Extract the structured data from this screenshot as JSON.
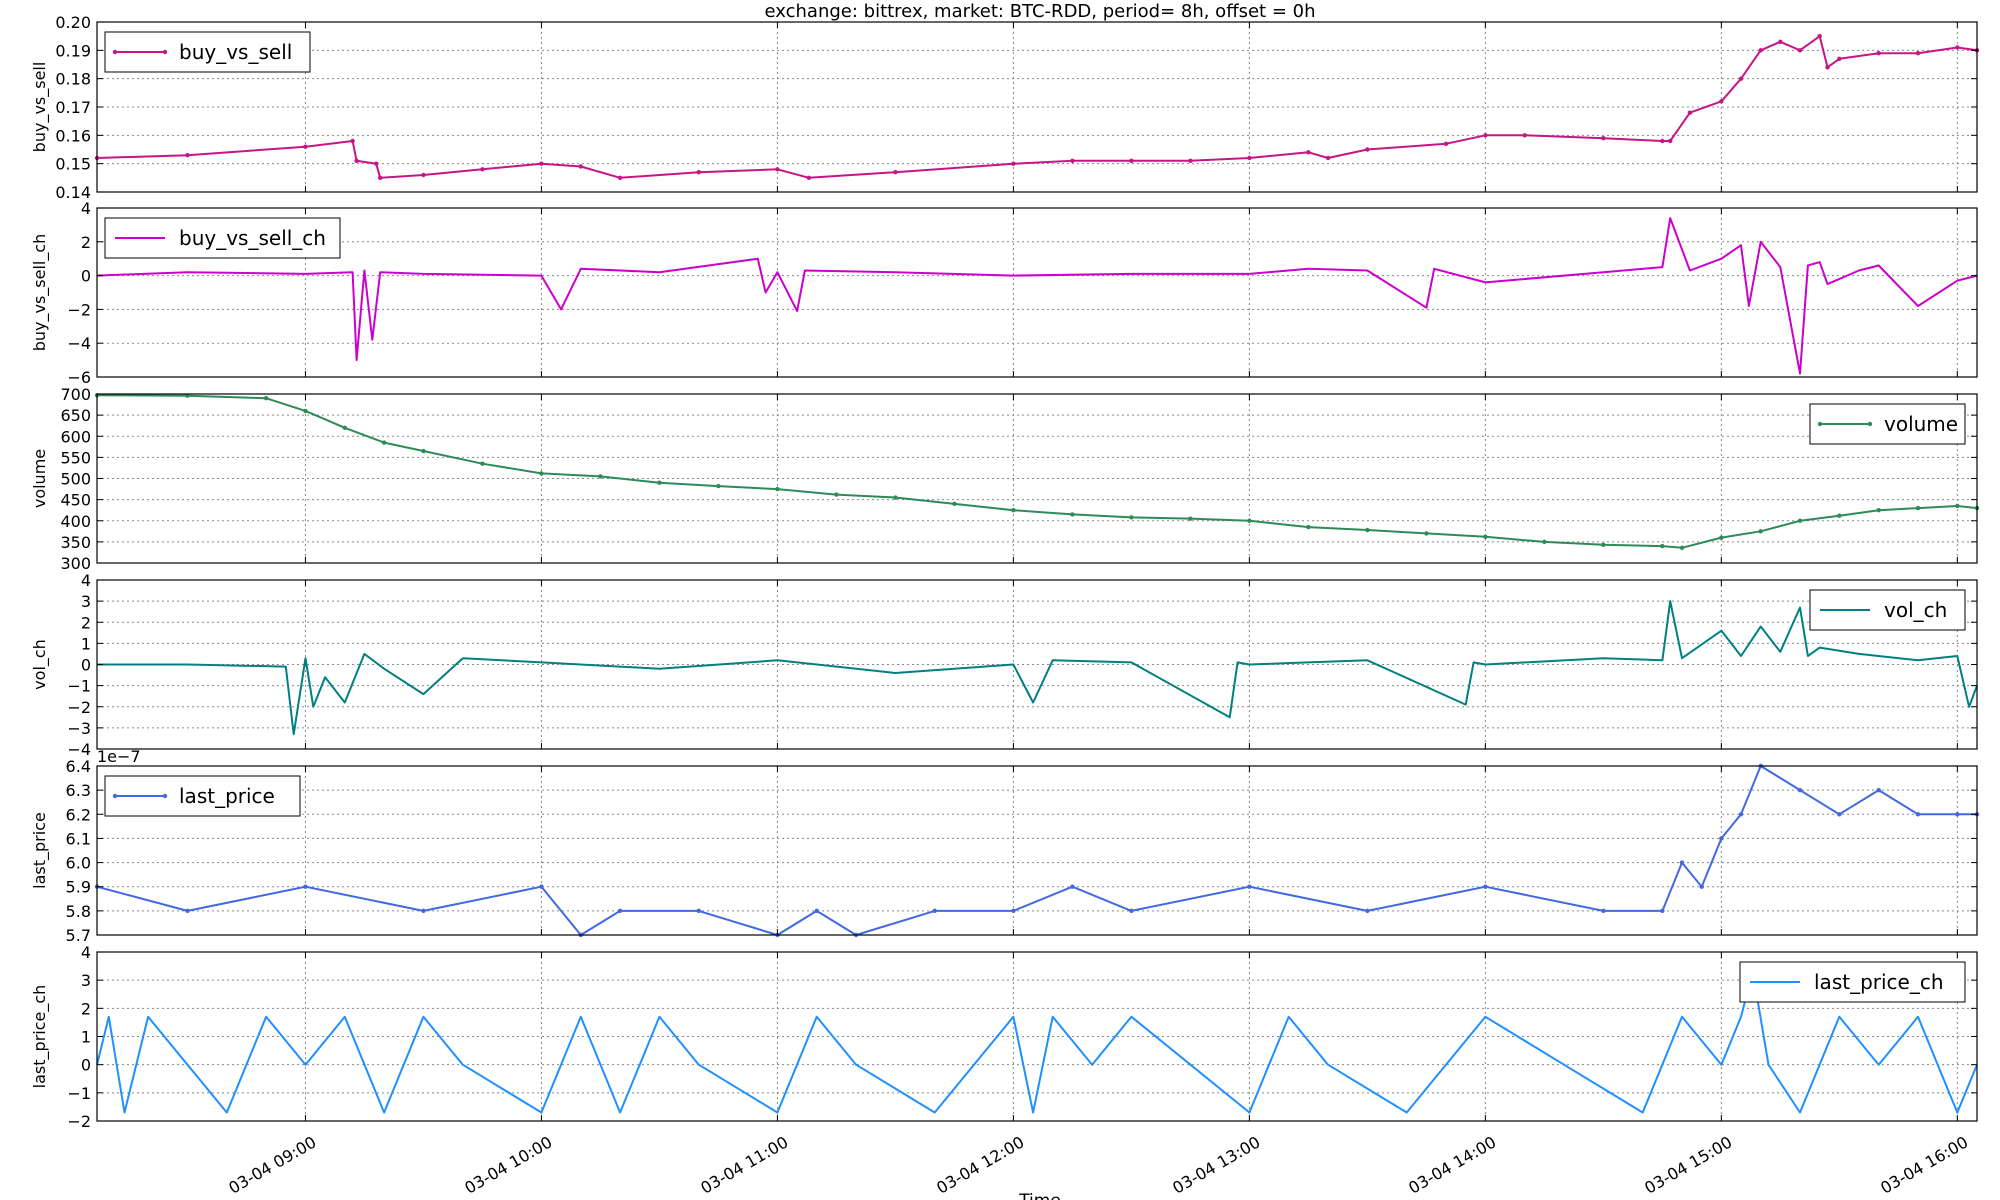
{
  "title": "exchange:  bittrex,   market: BTC-RDD,    period= 8h,  offset = 0h",
  "xlabel": "Time",
  "x_ticks": [
    "03-04 09:00",
    "03-04 10:00",
    "03-04 11:00",
    "03-04 12:00",
    "03-04 13:00",
    "03-04 14:00",
    "03-04 15:00",
    "03-04 16:00"
  ],
  "x_range": [
    "03-04 08:07",
    "03-04 16:05"
  ],
  "chart_data": [
    {
      "type": "line",
      "ylabel": "buy_vs_sell",
      "ylim": [
        0.14,
        0.2
      ],
      "y_ticks": [
        "0.14",
        "0.15",
        "0.16",
        "0.17",
        "0.18",
        "0.19",
        "0.20"
      ],
      "grid": true,
      "legend": "top-left",
      "color": "#c71585",
      "markers": true,
      "series": [
        {
          "name": "buy_vs_sell",
          "x": [
            "08:07",
            "08:30",
            "09:00",
            "09:12",
            "09:13",
            "09:18",
            "09:19",
            "09:30",
            "09:45",
            "10:00",
            "10:10",
            "10:20",
            "10:40",
            "11:00",
            "11:08",
            "11:30",
            "12:00",
            "12:15",
            "12:30",
            "12:45",
            "13:00",
            "13:15",
            "13:20",
            "13:30",
            "13:50",
            "14:00",
            "14:10",
            "14:30",
            "14:45",
            "14:47",
            "14:52",
            "15:00",
            "15:05",
            "15:10",
            "15:15",
            "15:20",
            "15:25",
            "15:27",
            "15:30",
            "15:40",
            "15:50",
            "16:00",
            "16:05"
          ],
          "y": [
            0.152,
            0.153,
            0.156,
            0.158,
            0.151,
            0.15,
            0.145,
            0.146,
            0.148,
            0.15,
            0.149,
            0.145,
            0.147,
            0.148,
            0.145,
            0.147,
            0.15,
            0.151,
            0.151,
            0.151,
            0.152,
            0.154,
            0.152,
            0.155,
            0.157,
            0.16,
            0.16,
            0.159,
            0.158,
            0.158,
            0.168,
            0.172,
            0.18,
            0.19,
            0.193,
            0.19,
            0.195,
            0.184,
            0.187,
            0.189,
            0.189,
            0.191,
            0.19
          ]
        }
      ]
    },
    {
      "type": "line",
      "ylabel": "buy_vs_sell_ch",
      "ylim": [
        -6,
        4
      ],
      "y_ticks": [
        "−6",
        "−4",
        "−2",
        "0",
        "2",
        "4"
      ],
      "grid": true,
      "legend": "top-left",
      "color": "#cc00cc",
      "markers": false,
      "series": [
        {
          "name": "buy_vs_sell_ch",
          "x": [
            "08:07",
            "08:30",
            "09:00",
            "09:12",
            "09:13",
            "09:15",
            "09:17",
            "09:19",
            "09:30",
            "10:00",
            "10:05",
            "10:10",
            "10:30",
            "10:55",
            "10:57",
            "11:00",
            "11:05",
            "11:07",
            "11:30",
            "12:00",
            "12:30",
            "13:00",
            "13:15",
            "13:30",
            "13:45",
            "13:47",
            "14:00",
            "14:30",
            "14:45",
            "14:47",
            "14:52",
            "15:00",
            "15:05",
            "15:07",
            "15:10",
            "15:15",
            "15:20",
            "15:22",
            "15:25",
            "15:27",
            "15:35",
            "15:40",
            "15:50",
            "16:00",
            "16:05"
          ],
          "y": [
            0,
            0.2,
            0.1,
            0.2,
            -5.0,
            0.3,
            -3.8,
            0.2,
            0.1,
            0,
            -2.0,
            0.4,
            0.2,
            1.0,
            -1.0,
            0.2,
            -2.1,
            0.3,
            0.2,
            0,
            0.1,
            0.1,
            0.4,
            0.3,
            -1.9,
            0.4,
            -0.4,
            0.2,
            0.5,
            3.4,
            0.3,
            1.0,
            1.8,
            -1.8,
            2.0,
            0.5,
            -5.8,
            0.6,
            0.8,
            -0.5,
            0.3,
            0.6,
            -1.8,
            -0.3,
            0
          ]
        }
      ]
    },
    {
      "type": "line",
      "ylabel": "volume",
      "ylim": [
        300,
        700
      ],
      "y_ticks": [
        "300",
        "350",
        "400",
        "450",
        "500",
        "550",
        "600",
        "650",
        "700"
      ],
      "grid": true,
      "legend": "top-right",
      "color": "#2e8b57",
      "markers": true,
      "series": [
        {
          "name": "volume",
          "x": [
            "08:07",
            "08:30",
            "08:50",
            "09:00",
            "09:10",
            "09:20",
            "09:30",
            "09:45",
            "10:00",
            "10:15",
            "10:30",
            "10:45",
            "11:00",
            "11:15",
            "11:30",
            "11:45",
            "12:00",
            "12:15",
            "12:30",
            "12:45",
            "13:00",
            "13:15",
            "13:30",
            "13:45",
            "14:00",
            "14:15",
            "14:30",
            "14:45",
            "14:50",
            "15:00",
            "15:10",
            "15:20",
            "15:30",
            "15:40",
            "15:50",
            "16:00",
            "16:05"
          ],
          "y": [
            697,
            696,
            690,
            660,
            620,
            585,
            565,
            535,
            512,
            505,
            490,
            482,
            475,
            462,
            455,
            440,
            425,
            415,
            408,
            405,
            400,
            385,
            378,
            370,
            362,
            350,
            343,
            340,
            336,
            360,
            375,
            400,
            412,
            425,
            430,
            435,
            430
          ]
        }
      ]
    },
    {
      "type": "line",
      "ylabel": "vol_ch",
      "ylim": [
        -4,
        4
      ],
      "y_ticks": [
        "−4",
        "−3",
        "−2",
        "−1",
        "0",
        "1",
        "2",
        "3",
        "4"
      ],
      "grid": true,
      "legend": "top-right",
      "color": "#008080",
      "markers": false,
      "series": [
        {
          "name": "vol_ch",
          "x": [
            "08:07",
            "08:30",
            "08:55",
            "08:57",
            "09:00",
            "09:02",
            "09:05",
            "09:10",
            "09:15",
            "09:20",
            "09:30",
            "09:40",
            "10:00",
            "10:30",
            "11:00",
            "11:30",
            "12:00",
            "12:05",
            "12:10",
            "12:30",
            "12:55",
            "12:57",
            "13:00",
            "13:30",
            "13:55",
            "13:57",
            "14:00",
            "14:30",
            "14:45",
            "14:47",
            "14:50",
            "15:00",
            "15:05",
            "15:10",
            "15:15",
            "15:20",
            "15:22",
            "15:25",
            "15:35",
            "15:50",
            "16:00",
            "16:03",
            "16:05"
          ],
          "y": [
            0,
            0,
            -0.1,
            -3.3,
            0.3,
            -2.0,
            -0.6,
            -1.8,
            0.5,
            -0.2,
            -1.4,
            0.3,
            0.1,
            -0.2,
            0.2,
            -0.4,
            0,
            -1.8,
            0.2,
            0.1,
            -2.5,
            0.1,
            0,
            0.2,
            -1.9,
            0.1,
            0,
            0.3,
            0.2,
            3.0,
            0.3,
            1.6,
            0.4,
            1.8,
            0.6,
            2.7,
            0.4,
            0.8,
            0.5,
            0.2,
            0.4,
            -2.0,
            -1.0
          ]
        }
      ]
    },
    {
      "type": "line",
      "ylabel": "last_price",
      "y_multiplier": "1e−7",
      "ylim": [
        5.7,
        6.4
      ],
      "y_ticks": [
        "5.7",
        "5.8",
        "5.9",
        "6.0",
        "6.1",
        "6.2",
        "6.3",
        "6.4"
      ],
      "grid": true,
      "legend": "top-left",
      "color": "#4169e1",
      "markers": true,
      "series": [
        {
          "name": "last_price",
          "x": [
            "08:07",
            "08:30",
            "09:00",
            "09:30",
            "10:00",
            "10:10",
            "10:20",
            "10:40",
            "11:00",
            "11:10",
            "11:20",
            "11:40",
            "12:00",
            "12:15",
            "12:30",
            "13:00",
            "13:30",
            "14:00",
            "14:30",
            "14:45",
            "14:50",
            "14:55",
            "15:00",
            "15:05",
            "15:10",
            "15:20",
            "15:30",
            "15:40",
            "15:50",
            "16:00",
            "16:05"
          ],
          "y": [
            5.9,
            5.8,
            5.9,
            5.8,
            5.9,
            5.7,
            5.8,
            5.8,
            5.7,
            5.8,
            5.7,
            5.8,
            5.8,
            5.9,
            5.8,
            5.9,
            5.8,
            5.9,
            5.8,
            5.8,
            6.0,
            5.9,
            6.1,
            6.2,
            6.4,
            6.3,
            6.2,
            6.3,
            6.2,
            6.2,
            6.2
          ]
        }
      ]
    },
    {
      "type": "line",
      "ylabel": "last_price_ch",
      "ylim": [
        -2,
        4
      ],
      "y_ticks": [
        "−2",
        "−1",
        "0",
        "1",
        "2",
        "3",
        "4"
      ],
      "grid": true,
      "legend": "top-right",
      "color": "#1e90ff",
      "markers": false,
      "series": [
        {
          "name": "last_price_ch",
          "x": [
            "08:07",
            "08:10",
            "08:14",
            "08:20",
            "08:30",
            "08:40",
            "08:50",
            "09:00",
            "09:10",
            "09:20",
            "09:30",
            "09:40",
            "10:00",
            "10:10",
            "10:20",
            "10:30",
            "10:40",
            "11:00",
            "11:10",
            "11:20",
            "11:40",
            "12:00",
            "12:05",
            "12:10",
            "12:20",
            "12:30",
            "13:00",
            "13:10",
            "13:20",
            "13:40",
            "14:00",
            "14:20",
            "14:40",
            "14:50",
            "15:00",
            "15:05",
            "15:08",
            "15:12",
            "15:20",
            "15:30",
            "15:40",
            "15:50",
            "16:00",
            "16:05"
          ],
          "y": [
            0,
            1.7,
            -1.7,
            1.7,
            0,
            -1.7,
            1.7,
            0,
            1.7,
            -1.7,
            1.7,
            0,
            -1.7,
            1.7,
            -1.7,
            1.7,
            0,
            -1.7,
            1.7,
            0,
            -1.7,
            1.7,
            -1.7,
            1.7,
            0,
            1.7,
            -1.7,
            1.7,
            0,
            -1.7,
            1.7,
            0,
            -1.7,
            1.7,
            0,
            1.7,
            3.3,
            0,
            -1.7,
            1.7,
            0,
            1.7,
            -1.7,
            0
          ]
        }
      ]
    }
  ]
}
